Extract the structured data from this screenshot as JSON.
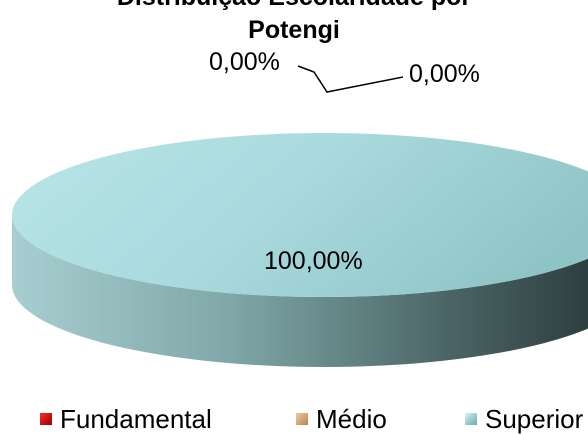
{
  "chart_data": {
    "type": "pie",
    "title_line1": "Distribuição Escolaridade por",
    "title_line2": "Potengi",
    "categories": [
      "Fundamental",
      "Médio",
      "Superior"
    ],
    "values": [
      0,
      0,
      100
    ],
    "data_labels": [
      "0,00%",
      "0,00%",
      "100,00%"
    ],
    "colors": [
      "#c00000",
      "#d9a877",
      "#9fd6dc"
    ],
    "legend_position": "bottom",
    "style": "3d"
  }
}
